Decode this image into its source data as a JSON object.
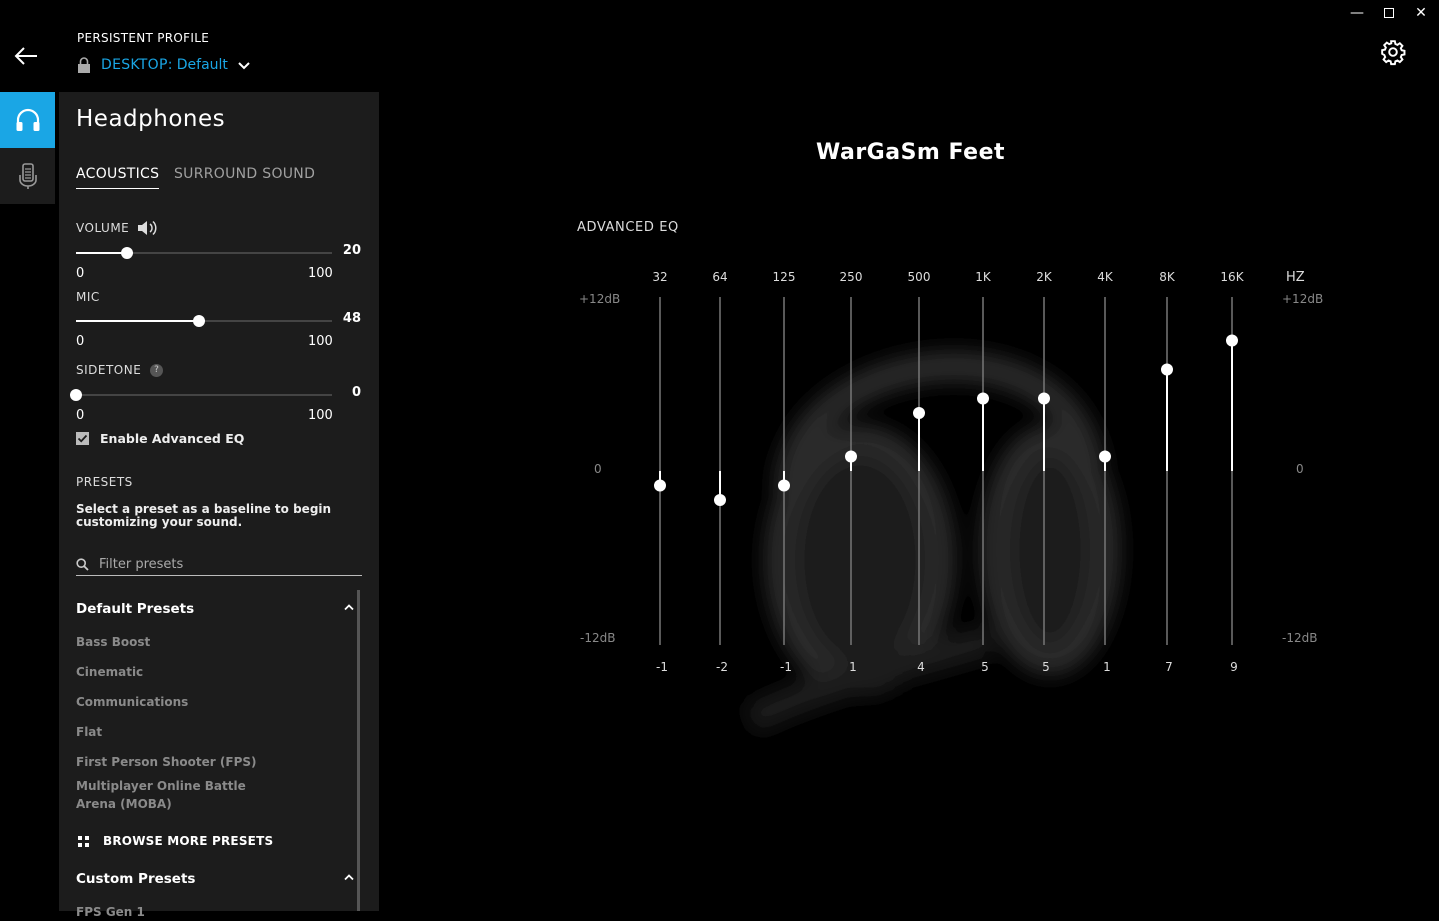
{
  "window": {
    "minimize": "—",
    "close": "✕"
  },
  "header": {
    "profile_label": "PERSISTENT PROFILE",
    "profile_device": "DESKTOP:",
    "profile_name": "Default"
  },
  "panel": {
    "title": "Headphones",
    "tabs": [
      {
        "label": "ACOUSTICS",
        "active": true
      },
      {
        "label": "SURROUND SOUND",
        "active": false
      }
    ],
    "volume": {
      "label": "VOLUME",
      "value": "20",
      "min": "0",
      "max": "100",
      "level": 20
    },
    "mic": {
      "label": "MIC",
      "value": "48",
      "min": "0",
      "max": "100",
      "level": 48
    },
    "sidetone": {
      "label": "SIDETONE",
      "help": "?",
      "value": "0",
      "min": "0",
      "max": "100",
      "level": 0
    },
    "advanced_eq": {
      "label": "Enable Advanced EQ",
      "checked": true
    },
    "presets": {
      "header": "PRESETS",
      "description": "Select a preset as a baseline to begin customizing your sound.",
      "filter_placeholder": "Filter presets",
      "default_group": "Default Presets",
      "default_items": [
        "Bass Boost",
        "Cinematic",
        "Communications",
        "Flat",
        "First Person Shooter (FPS)",
        "Multiplayer Online Battle Arena (MOBA)"
      ],
      "browse_label": "BROWSE MORE PRESETS",
      "custom_group": "Custom Presets",
      "custom_items": [
        "FPS Gen 1"
      ]
    }
  },
  "eq": {
    "title": "WarGaSm Feet",
    "section_label": "ADVANCED EQ",
    "unit": "HZ",
    "max_label": "+12dB",
    "mid_label": "0",
    "min_label": "-12dB",
    "bands": [
      {
        "freq": "32",
        "gain": -1
      },
      {
        "freq": "64",
        "gain": -2
      },
      {
        "freq": "125",
        "gain": -1
      },
      {
        "freq": "250",
        "gain": 1
      },
      {
        "freq": "500",
        "gain": 4
      },
      {
        "freq": "1K",
        "gain": 5
      },
      {
        "freq": "2K",
        "gain": 5
      },
      {
        "freq": "4K",
        "gain": 1
      },
      {
        "freq": "8K",
        "gain": 7
      },
      {
        "freq": "16K",
        "gain": 9
      }
    ]
  },
  "colors": {
    "accent": "#1aa6e5",
    "panel": "#1c1c1c",
    "background": "#000000"
  }
}
